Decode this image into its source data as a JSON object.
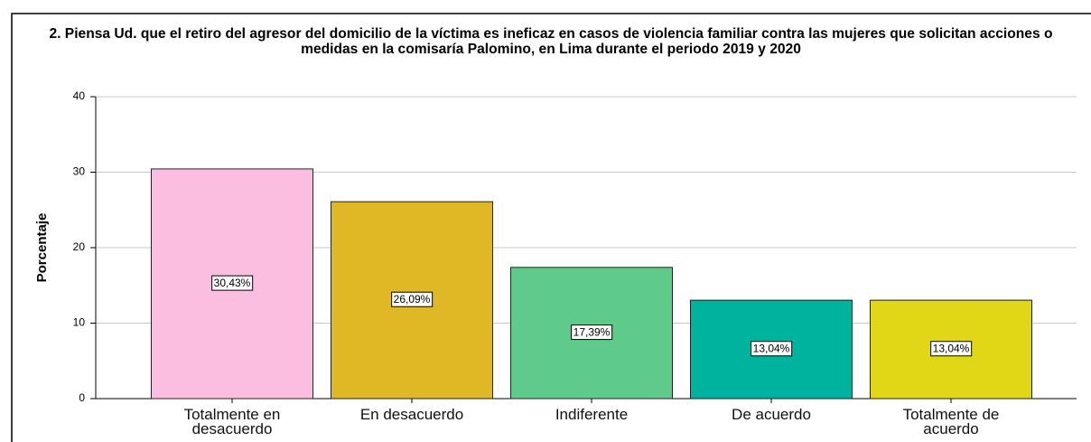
{
  "chart_data": {
    "type": "bar",
    "title": "2. Piensa Ud. que el retiro del agresor del domicilio de la víctima es ineficaz en casos de violencia familiar contra las mujeres que solicitan acciones o medidas en la comisaría Palomino, en Lima durante el periodo 2019 y 2020",
    "y_label": "Porcentaje",
    "categories": [
      "Totalmente en desacuerdo",
      "En desacuerdo",
      "Indiferente",
      "De acuerdo",
      "Totalmente de acuerdo"
    ],
    "values": [
      30.43,
      26.09,
      17.39,
      13.04,
      13.04
    ],
    "value_labels": [
      "30,43%",
      "26,09%",
      "17,39%",
      "13,04%",
      "13,04%"
    ],
    "colors": [
      "#fbbde0",
      "#e0b724",
      "#5fcb8a",
      "#00b39e",
      "#e2d716"
    ],
    "ylim": [
      0,
      40
    ],
    "yticks": [
      0,
      10,
      20,
      30,
      40
    ],
    "grid": true
  }
}
